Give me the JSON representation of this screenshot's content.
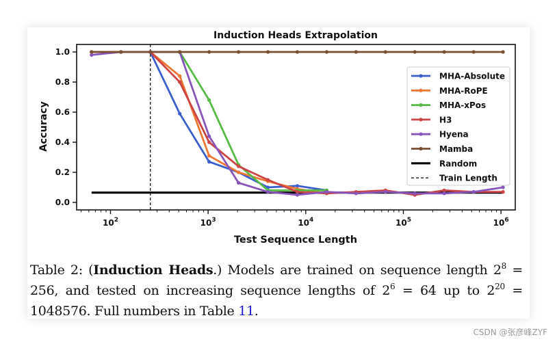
{
  "watermark": "CSDN @张彦峰ZYF",
  "caption": {
    "prefix": "Table 2: (",
    "bold": "Induction Heads",
    "text_1": ".) Models are trained on sequence length 2",
    "sup_1": "8",
    "text_2": " = 256, and tested on increasing sequence lengths of 2",
    "sup_2": "6",
    "text_3": " = 64 up to 2",
    "sup_3": "20",
    "text_4": " = 1048576. Full numbers in Table ",
    "ref": "11",
    "suffix": "."
  },
  "chart_data": {
    "type": "line",
    "title": "Induction Heads Extrapolation",
    "xlabel": "Test Sequence Length",
    "ylabel": "Accuracy",
    "x_scale": "log2",
    "xlim": [
      45,
      1400000
    ],
    "ylim": [
      -0.05,
      1.05
    ],
    "x_ticks": [
      {
        "base": "10",
        "exp": "2",
        "value": 100
      },
      {
        "base": "10",
        "exp": "3",
        "value": 1000
      },
      {
        "base": "10",
        "exp": "4",
        "value": 10000
      },
      {
        "base": "10",
        "exp": "5",
        "value": 100000
      },
      {
        "base": "10",
        "exp": "6",
        "value": 1000000
      }
    ],
    "y_ticks": [
      "0.0",
      "0.2",
      "0.4",
      "0.6",
      "0.8",
      "1.0"
    ],
    "grid": false,
    "legend_position": "right",
    "x": [
      64,
      128,
      256,
      512,
      1024,
      2048,
      4096,
      8192,
      16384,
      32768,
      65536,
      131072,
      262144,
      524288,
      1048576
    ],
    "series": [
      {
        "name": "MHA-Absolute",
        "color": "#3a5fcd",
        "values": [
          1.0,
          1.0,
          1.0,
          0.59,
          0.27,
          0.2,
          0.1,
          0.11,
          0.08,
          null,
          null,
          null,
          null,
          null,
          null
        ]
      },
      {
        "name": "MHA-RoPE",
        "color": "#ee7733",
        "values": [
          1.0,
          1.0,
          1.0,
          0.84,
          0.31,
          0.2,
          0.14,
          0.09,
          0.06,
          null,
          null,
          null,
          null,
          null,
          null
        ]
      },
      {
        "name": "MHA-xPos",
        "color": "#55bb44",
        "values": [
          1.0,
          1.0,
          1.0,
          1.0,
          0.68,
          0.25,
          0.08,
          0.08,
          0.08,
          null,
          null,
          null,
          null,
          null,
          null
        ]
      },
      {
        "name": "H3",
        "color": "#cc4444",
        "values": [
          1.0,
          1.0,
          1.0,
          0.8,
          0.4,
          0.24,
          0.15,
          0.07,
          0.06,
          0.07,
          0.08,
          0.05,
          0.08,
          0.07,
          0.07
        ]
      },
      {
        "name": "Hyena",
        "color": "#8855bb",
        "values": [
          0.98,
          1.0,
          1.0,
          1.0,
          0.44,
          0.13,
          0.07,
          0.05,
          0.07,
          0.06,
          0.07,
          0.06,
          0.06,
          0.07,
          0.1
        ]
      },
      {
        "name": "Mamba",
        "color": "#7a4f30",
        "values": [
          1.0,
          1.0,
          1.0,
          1.0,
          1.0,
          1.0,
          1.0,
          1.0,
          1.0,
          1.0,
          1.0,
          1.0,
          1.0,
          1.0,
          1.0
        ]
      }
    ],
    "random_baseline": {
      "name": "Random",
      "value": 0.065,
      "color": "#000000"
    },
    "train_length": {
      "name": "Train Length",
      "x": 256,
      "color": "#000000"
    }
  }
}
